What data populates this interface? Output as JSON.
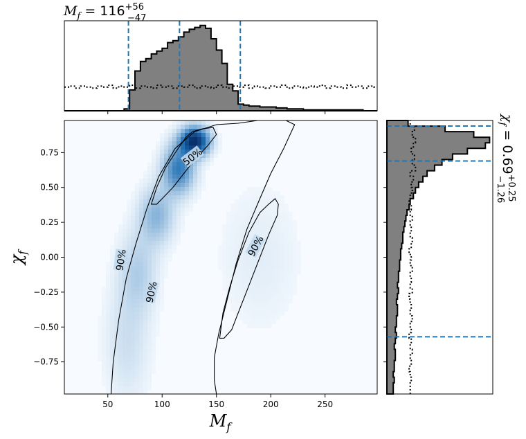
{
  "chart_data": [
    {
      "panel": "top-marginal-histogram",
      "type": "histogram",
      "title_main": "M",
      "title_sub": "f",
      "title_value": " = 116",
      "title_sup": "+56",
      "title_inf": "−47",
      "xlim": [
        10,
        298
      ],
      "bin_edges": [
        10,
        15,
        20,
        25,
        30,
        35,
        40,
        45,
        50,
        55,
        60,
        65,
        70,
        75,
        80,
        85,
        90,
        95,
        100,
        105,
        110,
        115,
        120,
        125,
        130,
        135,
        140,
        145,
        150,
        155,
        160,
        165,
        170,
        175,
        180,
        185,
        190,
        195,
        200,
        205,
        210,
        215,
        220,
        225,
        230,
        235,
        240,
        245,
        250,
        255,
        260,
        265,
        270,
        275,
        280,
        285,
        290,
        295,
        298
      ],
      "posterior_counts": [
        0,
        0,
        0,
        0,
        0,
        0,
        0,
        0,
        0,
        0,
        0,
        0.02,
        0.22,
        0.42,
        0.52,
        0.55,
        0.6,
        0.63,
        0.66,
        0.72,
        0.74,
        0.78,
        0.83,
        0.86,
        0.88,
        0.9,
        0.87,
        0.76,
        0.64,
        0.5,
        0.28,
        0.21,
        0.07,
        0.06,
        0.05,
        0.05,
        0.04,
        0.04,
        0.04,
        0.03,
        0.03,
        0.02,
        0.02,
        0.02,
        0.01,
        0.01,
        0.01,
        0.01,
        0.01,
        0.01,
        0.01,
        0.01,
        0.01,
        0.01,
        0.01,
        0.0,
        0.0,
        0.0
      ],
      "prior_counts": [
        0.25,
        0.26,
        0.24,
        0.26,
        0.25,
        0.24,
        0.26,
        0.25,
        0.27,
        0.24,
        0.26,
        0.25,
        0.27,
        0.24,
        0.26,
        0.25,
        0.24,
        0.27,
        0.25,
        0.26,
        0.24,
        0.26,
        0.25,
        0.27,
        0.24,
        0.26,
        0.25,
        0.24,
        0.27,
        0.25,
        0.24,
        0.26,
        0.25,
        0.27,
        0.24,
        0.26,
        0.25,
        0.24,
        0.26,
        0.25,
        0.27,
        0.24,
        0.26,
        0.25,
        0.24,
        0.26,
        0.25,
        0.27,
        0.24,
        0.26,
        0.25,
        0.24,
        0.27,
        0.25,
        0.26,
        0.24,
        0.26,
        0.25
      ],
      "quantile_lines": [
        69,
        116,
        172
      ]
    },
    {
      "panel": "joint-2d-density",
      "type": "heatmap",
      "xlabel_main": "M",
      "xlabel_sub": "f",
      "ylabel_main": "χ",
      "ylabel_sub": "f",
      "xlim": [
        10,
        298
      ],
      "ylim": [
        -0.98,
        0.98
      ],
      "xticks": [
        50,
        100,
        150,
        200,
        250
      ],
      "xtick_labels": [
        "50",
        "100",
        "150",
        "200",
        "250"
      ],
      "yticks": [
        0.75,
        0.5,
        0.25,
        0.0,
        -0.25,
        -0.5,
        -0.75
      ],
      "ytick_labels": [
        "0.75",
        "0.50",
        "0.25",
        "0.00",
        "−0.25",
        "−0.50",
        "−0.75"
      ],
      "density_blobs": [
        {
          "cx": 130,
          "cy": 0.83,
          "sx": 9,
          "sy": 0.07,
          "weight": 1.0
        },
        {
          "cx": 115,
          "cy": 0.63,
          "sx": 10,
          "sy": 0.12,
          "weight": 0.55
        },
        {
          "cx": 95,
          "cy": 0.3,
          "sx": 11,
          "sy": 0.14,
          "weight": 0.3
        },
        {
          "cx": 78,
          "cy": -0.1,
          "sx": 12,
          "sy": 0.2,
          "weight": 0.18
        },
        {
          "cx": 68,
          "cy": -0.6,
          "sx": 14,
          "sy": 0.3,
          "weight": 0.12
        },
        {
          "cx": 190,
          "cy": 0.0,
          "sx": 25,
          "sy": 0.35,
          "weight": 0.06
        }
      ],
      "contour_50": [
        [
          90,
          0.38
        ],
        [
          95,
          0.5
        ],
        [
          103,
          0.64
        ],
        [
          113,
          0.76
        ],
        [
          122,
          0.86
        ],
        [
          128,
          0.9
        ],
        [
          137,
          0.92
        ],
        [
          147,
          0.93
        ],
        [
          150,
          0.88
        ],
        [
          142,
          0.8
        ],
        [
          130,
          0.7
        ],
        [
          120,
          0.6
        ],
        [
          110,
          0.5
        ],
        [
          100,
          0.42
        ],
        [
          95,
          0.38
        ]
      ],
      "contour_90_main": [
        [
          150,
          -0.98
        ],
        [
          148,
          -0.88
        ],
        [
          148,
          -0.72
        ],
        [
          152,
          -0.55
        ],
        [
          160,
          -0.3
        ],
        [
          168,
          -0.05
        ],
        [
          178,
          0.2
        ],
        [
          190,
          0.42
        ],
        [
          200,
          0.6
        ],
        [
          212,
          0.78
        ],
        [
          222,
          0.95
        ],
        [
          214,
          0.98
        ],
        [
          188,
          0.98
        ],
        [
          170,
          0.96
        ],
        [
          150,
          0.95
        ],
        [
          130,
          0.9
        ],
        [
          112,
          0.78
        ],
        [
          97,
          0.58
        ],
        [
          86,
          0.35
        ],
        [
          76,
          0.1
        ],
        [
          67,
          -0.15
        ],
        [
          60,
          -0.45
        ],
        [
          55,
          -0.75
        ],
        [
          53,
          -0.98
        ]
      ],
      "contour_90_island": [
        [
          153,
          -0.58
        ],
        [
          156,
          -0.4
        ],
        [
          162,
          -0.22
        ],
        [
          170,
          -0.02
        ],
        [
          180,
          0.18
        ],
        [
          190,
          0.32
        ],
        [
          198,
          0.38
        ],
        [
          204,
          0.42
        ],
        [
          207,
          0.38
        ],
        [
          206,
          0.3
        ],
        [
          198,
          0.16
        ],
        [
          188,
          -0.04
        ],
        [
          178,
          -0.24
        ],
        [
          170,
          -0.4
        ],
        [
          164,
          -0.52
        ],
        [
          157,
          -0.58
        ],
        [
          153,
          -0.58
        ]
      ],
      "contour_labels": [
        {
          "text": "50%",
          "x": 128,
          "y": 0.72,
          "angle": -38
        },
        {
          "text": "90%",
          "x": 62,
          "y": -0.02,
          "angle": -82
        },
        {
          "text": "90%",
          "x": 90,
          "y": -0.25,
          "angle": -78
        },
        {
          "text": "90%",
          "x": 186,
          "y": 0.08,
          "angle": -62
        }
      ]
    },
    {
      "panel": "right-marginal-histogram",
      "type": "histogram",
      "orientation": "horizontal",
      "title_main": "χ",
      "title_sub": "f",
      "title_value": " = 0.69",
      "title_sup": "+0.25",
      "title_inf": "−1.26",
      "ylim": [
        -0.98,
        0.98
      ],
      "bin_edges": [
        -0.98,
        -0.94,
        -0.9,
        -0.86,
        -0.82,
        -0.78,
        -0.74,
        -0.7,
        -0.66,
        -0.62,
        -0.58,
        -0.54,
        -0.5,
        -0.46,
        -0.42,
        -0.38,
        -0.34,
        -0.3,
        -0.26,
        -0.22,
        -0.18,
        -0.14,
        -0.1,
        -0.06,
        -0.02,
        0.02,
        0.06,
        0.1,
        0.14,
        0.18,
        0.22,
        0.26,
        0.3,
        0.34,
        0.38,
        0.42,
        0.46,
        0.5,
        0.54,
        0.58,
        0.62,
        0.66,
        0.7,
        0.74,
        0.78,
        0.82,
        0.86,
        0.9,
        0.94,
        0.98
      ],
      "posterior_counts": [
        0.06,
        0.06,
        0.07,
        0.06,
        0.07,
        0.07,
        0.08,
        0.08,
        0.07,
        0.08,
        0.09,
        0.08,
        0.09,
        0.09,
        0.1,
        0.1,
        0.09,
        0.1,
        0.11,
        0.1,
        0.11,
        0.11,
        0.12,
        0.12,
        0.13,
        0.13,
        0.14,
        0.15,
        0.15,
        0.16,
        0.17,
        0.18,
        0.19,
        0.21,
        0.22,
        0.25,
        0.27,
        0.3,
        0.34,
        0.38,
        0.45,
        0.52,
        0.62,
        0.76,
        0.93,
        0.97,
        0.82,
        0.55,
        0.2
      ],
      "prior_counts": [
        0.22,
        0.22,
        0.23,
        0.22,
        0.21,
        0.23,
        0.22,
        0.24,
        0.22,
        0.23,
        0.21,
        0.23,
        0.22,
        0.24,
        0.22,
        0.23,
        0.22,
        0.21,
        0.24,
        0.22,
        0.23,
        0.22,
        0.24,
        0.22,
        0.23,
        0.21,
        0.23,
        0.24,
        0.22,
        0.23,
        0.22,
        0.24,
        0.22,
        0.23,
        0.21,
        0.22,
        0.24,
        0.23,
        0.25,
        0.22,
        0.27,
        0.24,
        0.26,
        0.23,
        0.25,
        0.27,
        0.24,
        0.26,
        0.22
      ],
      "quantile_lines": [
        -0.57,
        0.69,
        0.94
      ]
    }
  ],
  "colors": {
    "posterior_fill": "#808080",
    "quantile_line": "#1f77b4",
    "outline": "#000000",
    "density_low": "#f7fbff",
    "density_high": "#08306b"
  }
}
